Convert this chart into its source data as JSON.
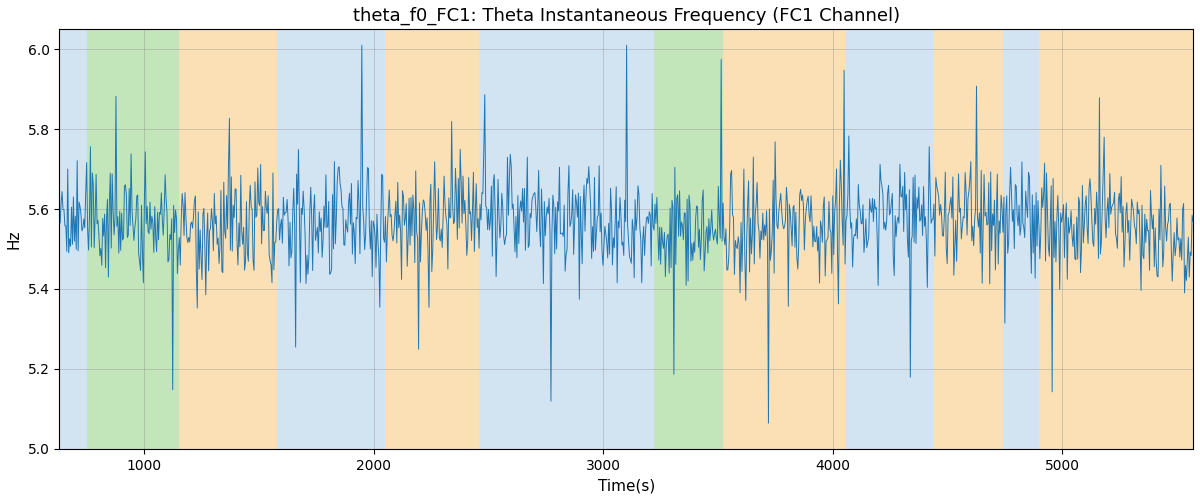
{
  "title": "theta_f0_FC1: Theta Instantaneous Frequency (FC1 Channel)",
  "xlabel": "Time(s)",
  "ylabel": "Hz",
  "ylim": [
    5.0,
    6.05
  ],
  "yticks": [
    5.0,
    5.2,
    5.4,
    5.6,
    5.8,
    6.0
  ],
  "xlim": [
    630,
    5570
  ],
  "xticks": [
    1000,
    2000,
    3000,
    4000,
    5000
  ],
  "line_color": "#1f77b4",
  "line_width": 0.7,
  "grid_color": "#888888",
  "grid_alpha": 0.5,
  "background_color": "#ffffff",
  "title_fontsize": 13,
  "label_fontsize": 11,
  "colored_regions": [
    {
      "xmin": 630,
      "xmax": 750,
      "color": "#aecde8",
      "alpha": 0.55
    },
    {
      "xmin": 750,
      "xmax": 1150,
      "color": "#90d080",
      "alpha": 0.55
    },
    {
      "xmin": 1150,
      "xmax": 1580,
      "color": "#f9c87a",
      "alpha": 0.55
    },
    {
      "xmin": 1580,
      "xmax": 2050,
      "color": "#aecde8",
      "alpha": 0.55
    },
    {
      "xmin": 2050,
      "xmax": 2460,
      "color": "#f9c87a",
      "alpha": 0.55
    },
    {
      "xmin": 2460,
      "xmax": 2560,
      "color": "#aecde8",
      "alpha": 0.55
    },
    {
      "xmin": 2560,
      "xmax": 3120,
      "color": "#aecde8",
      "alpha": 0.55
    },
    {
      "xmin": 3120,
      "xmax": 3220,
      "color": "#aecde8",
      "alpha": 0.55
    },
    {
      "xmin": 3220,
      "xmax": 3520,
      "color": "#90d080",
      "alpha": 0.55
    },
    {
      "xmin": 3520,
      "xmax": 3800,
      "color": "#f9c87a",
      "alpha": 0.55
    },
    {
      "xmin": 3800,
      "xmax": 4060,
      "color": "#f9c87a",
      "alpha": 0.55
    },
    {
      "xmin": 4060,
      "xmax": 4440,
      "color": "#aecde8",
      "alpha": 0.55
    },
    {
      "xmin": 4440,
      "xmax": 4740,
      "color": "#f9c87a",
      "alpha": 0.55
    },
    {
      "xmin": 4740,
      "xmax": 4900,
      "color": "#aecde8",
      "alpha": 0.55
    },
    {
      "xmin": 4900,
      "xmax": 5570,
      "color": "#f9c87a",
      "alpha": 0.55
    }
  ],
  "random_seed": 42,
  "t_start": 630,
  "t_end": 5570,
  "n_points": 1200,
  "signal_mean": 5.565,
  "signal_std": 0.1,
  "signal_min": 5.0,
  "signal_max": 6.01
}
